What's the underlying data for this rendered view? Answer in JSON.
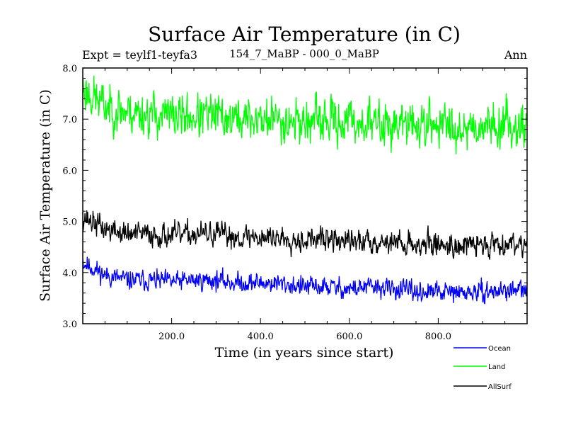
{
  "chart_data": {
    "type": "line",
    "title": "Surface Air Temperature (in C)",
    "subtitle_left": "Expt = teylf1-teyfa3",
    "subtitle_center": "154_7_MaBP - 000_0_MaBP",
    "subtitle_right": "Ann",
    "xlabel": "Time (in years since start)",
    "ylabel": "Surface Air Temperature (in C)",
    "xlim": [
      0,
      1000
    ],
    "ylim": [
      3.0,
      8.0
    ],
    "xticks": [
      200,
      400,
      600,
      800
    ],
    "xtick_labels": [
      "200.0",
      "400.0",
      "600.0",
      "800.0"
    ],
    "yticks": [
      3,
      4,
      5,
      6,
      7,
      8
    ],
    "ytick_labels": [
      "3.0",
      "4.0",
      "5.0",
      "6.0",
      "7.0",
      "8.0"
    ],
    "legend_position": "bottom-right",
    "series": [
      {
        "name": "Ocean",
        "color": "#0000ff",
        "x": [
          0,
          50,
          100,
          150,
          200,
          250,
          300,
          350,
          400,
          450,
          500,
          550,
          600,
          650,
          700,
          750,
          800,
          850,
          900,
          950,
          1000
        ],
        "values": [
          4.2,
          3.95,
          3.85,
          3.85,
          3.82,
          3.85,
          3.85,
          3.8,
          3.8,
          3.78,
          3.72,
          3.72,
          3.68,
          3.72,
          3.68,
          3.62,
          3.62,
          3.6,
          3.62,
          3.65,
          3.65
        ]
      },
      {
        "name": "Land",
        "color": "#00ff00",
        "x": [
          0,
          50,
          100,
          150,
          200,
          250,
          300,
          350,
          400,
          450,
          500,
          550,
          600,
          650,
          700,
          750,
          800,
          850,
          900,
          950,
          1000
        ],
        "values": [
          7.6,
          7.25,
          7.15,
          7.1,
          7.05,
          7.05,
          7.05,
          7.0,
          7.0,
          7.0,
          6.95,
          6.95,
          6.95,
          6.92,
          6.9,
          6.88,
          6.9,
          6.85,
          6.88,
          6.9,
          6.9
        ]
      },
      {
        "name": "AllSurf",
        "color": "#000000",
        "x": [
          0,
          50,
          100,
          150,
          200,
          250,
          300,
          350,
          400,
          450,
          500,
          550,
          600,
          650,
          700,
          750,
          800,
          850,
          900,
          950,
          1000
        ],
        "values": [
          5.1,
          4.85,
          4.75,
          4.75,
          4.72,
          4.75,
          4.75,
          4.7,
          4.7,
          4.68,
          4.65,
          4.65,
          4.6,
          4.62,
          4.6,
          4.55,
          4.56,
          4.52,
          4.55,
          4.58,
          4.58
        ]
      }
    ]
  }
}
